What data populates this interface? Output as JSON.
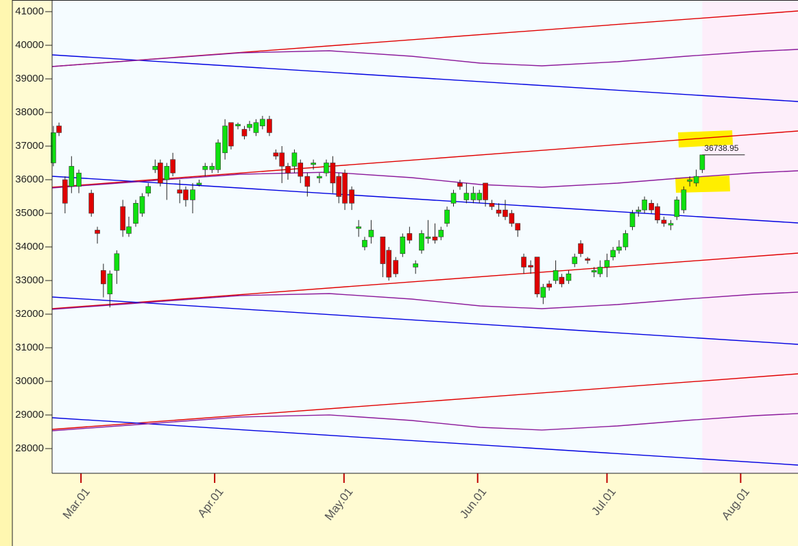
{
  "chart_data": {
    "type": "candlestick",
    "x": [
      53.6,
      54.9,
      56.3,
      57.8,
      59.5,
      62.4,
      63.8,
      65.2,
      66.7,
      68.3,
      69.7,
      71.1,
      72.7,
      74.2,
      75.6,
      77.2,
      78.4,
      79.9,
      81.3,
      82.9,
      84.3,
      85.9,
      87.4,
      88.8,
      90.4,
      91.8,
      93.4,
      94.8,
      96.4,
      97.9,
      99.1,
      100.6,
      102.1,
      103.7,
      105.2,
      106.6,
      108.0,
      109.5,
      110.9,
      112.5,
      113.9,
      115.3,
      116.9,
      118.4,
      119.8,
      121.2,
      122.8,
      124.4,
      125.8,
      127.3,
      130.0,
      131.4,
      133.0,
      134.6,
      136.2,
      137.6,
      139.0,
      140.5,
      142.1,
      143.5,
      144.9,
      146.4,
      147.9,
      149.4,
      151.0,
      152.4,
      153.8,
      155.3,
      156.9,
      158.4,
      159.9,
      161.3,
      162.7,
      164.3,
      165.8,
      167.2,
      168.6,
      170.1,
      171.5,
      173.1,
      174.5,
      175.9,
      177.5,
      179.0,
      180.4,
      182.0,
      183.4,
      184.8,
      186.3,
      187.9,
      189.3,
      190.7,
      192.3,
      193.7,
      195.2,
      196.8,
      198.2,
      199.8,
      201.2,
      202.7,
      204.1
    ],
    "open": [
      36500,
      37600,
      36000,
      35800,
      35800,
      35600,
      34500,
      33300,
      32600,
      33300,
      35200,
      34400,
      34700,
      35000,
      35600,
      36300,
      36500,
      36000,
      36600,
      35700,
      35700,
      35400,
      35850,
      36300,
      36300,
      36300,
      36800,
      37700,
      37600,
      37500,
      37550,
      37400,
      37600,
      37800,
      36800,
      36800,
      36400,
      36400,
      36500,
      36100,
      36450,
      36050,
      36200,
      36500,
      36100,
      36200,
      35700,
      34550,
      34000,
      34300,
      34300,
      33900,
      33600,
      33800,
      34400,
      33400,
      33900,
      34250,
      34300,
      34300,
      34700,
      35300,
      35900,
      35400,
      35400,
      35400,
      35900,
      35300,
      35100,
      35100,
      35000,
      34700,
      33700,
      33450,
      33700,
      32500,
      32900,
      33000,
      33100,
      33000,
      33500,
      34100,
      33650,
      33250,
      33200,
      33400,
      33700,
      33900,
      34000,
      34600,
      35050,
      35100,
      35300,
      35200,
      34800,
      34650,
      34900,
      35100,
      35950,
      35900,
      36300
    ],
    "high": [
      37600,
      37700,
      36100,
      36700,
      36300,
      35700,
      34600,
      33500,
      33300,
      33900,
      35400,
      34900,
      35400,
      35600,
      35900,
      36600,
      36600,
      36500,
      36800,
      36000,
      35800,
      35900,
      36000,
      36500,
      36500,
      37200,
      37800,
      37700,
      37700,
      37600,
      37750,
      37800,
      37900,
      37900,
      36900,
      37000,
      36500,
      36900,
      36600,
      36200,
      36600,
      36200,
      36600,
      36700,
      36200,
      36300,
      35800,
      34800,
      34300,
      34800,
      34300,
      34000,
      33700,
      34400,
      34600,
      33600,
      34500,
      34800,
      34700,
      34600,
      35200,
      35700,
      36000,
      35900,
      35800,
      35700,
      35900,
      35400,
      35300,
      35400,
      35100,
      34700,
      33800,
      33600,
      33700,
      32900,
      33000,
      33600,
      33200,
      33300,
      33800,
      34200,
      33700,
      33400,
      33600,
      33800,
      34000,
      34200,
      34500,
      35100,
      35200,
      35500,
      35400,
      35300,
      34900,
      34800,
      35500,
      35800,
      36100,
      36300,
      36739
    ],
    "low": [
      36400,
      37300,
      35000,
      35600,
      35600,
      34900,
      34100,
      32500,
      32200,
      32900,
      34300,
      34300,
      34600,
      34900,
      35500,
      36200,
      35800,
      35400,
      36100,
      35300,
      35200,
      35000,
      35800,
      36100,
      36200,
      36200,
      36600,
      36900,
      37500,
      37200,
      37450,
      37300,
      37500,
      37300,
      36600,
      35900,
      36000,
      36200,
      35900,
      35500,
      36300,
      35900,
      36100,
      35600,
      35300,
      35100,
      35100,
      34300,
      33900,
      34100,
      33100,
      33000,
      33100,
      33700,
      34100,
      33200,
      33800,
      34100,
      34100,
      34200,
      34600,
      35200,
      35700,
      35300,
      35300,
      35300,
      35200,
      35100,
      34900,
      34800,
      34600,
      34300,
      33200,
      33200,
      32500,
      32300,
      32700,
      32900,
      32800,
      32900,
      33400,
      33700,
      33500,
      33100,
      33100,
      33100,
      33600,
      33800,
      33900,
      34500,
      34900,
      35000,
      35000,
      34700,
      34600,
      34500,
      34800,
      35000,
      35800,
      35800,
      36200
    ],
    "close": [
      37400,
      37400,
      35300,
      36400,
      36200,
      35000,
      34400,
      32900,
      33200,
      33800,
      34500,
      34600,
      35300,
      35500,
      35800,
      36400,
      35900,
      36400,
      36200,
      35600,
      35400,
      35700,
      35900,
      36400,
      36400,
      37100,
      37600,
      37000,
      37650,
      37300,
      37650,
      37700,
      37800,
      37400,
      36700,
      36400,
      36200,
      36800,
      36100,
      35800,
      36500,
      36100,
      36500,
      35900,
      35500,
      35300,
      35300,
      34600,
      34200,
      34500,
      33500,
      33100,
      33200,
      34300,
      34200,
      33500,
      34400,
      34300,
      34200,
      34500,
      35100,
      35600,
      35800,
      35600,
      35600,
      35600,
      35400,
      35200,
      35000,
      34900,
      34700,
      34500,
      33400,
      33400,
      32600,
      32800,
      32800,
      33300,
      32900,
      33200,
      33700,
      33800,
      33600,
      33300,
      33400,
      33600,
      33900,
      34000,
      34400,
      35000,
      35100,
      35400,
      35100,
      34800,
      34700,
      34700,
      35400,
      35700,
      36000,
      36100,
      36738.95
    ],
    "up_color": "#10e010",
    "down_color": "#e00000",
    "xlim": [
      53.3,
      226.3
    ],
    "xticks": [
      {
        "value": 60,
        "label": "Mar.01"
      },
      {
        "value": 91,
        "label": "Apr.01"
      },
      {
        "value": 121,
        "label": "May.01"
      },
      {
        "value": 152,
        "label": "Jun.01"
      },
      {
        "value": 182,
        "label": "Jul.01"
      },
      {
        "value": 213,
        "label": "Aug.01"
      }
    ],
    "ylim": [
      27265,
      41347
    ],
    "yticks": [
      28000,
      29000,
      30000,
      31000,
      32000,
      33000,
      34000,
      35000,
      36000,
      37000,
      38000,
      39000,
      40000,
      41000
    ],
    "shaded_from": 204.1,
    "lines": [
      {
        "color": "#e00000",
        "x": [
          53.3,
          226.3
        ],
        "values": [
          39367,
          41020
        ]
      },
      {
        "color": "#e00000",
        "x": [
          53.3,
          226.3
        ],
        "values": [
          35776,
          37449
        ]
      },
      {
        "color": "#e00000",
        "x": [
          53.3,
          226.3
        ],
        "values": [
          32163,
          33816
        ]
      },
      {
        "color": "#e00000",
        "x": [
          53.3,
          226.3
        ],
        "values": [
          28571,
          30224
        ]
      },
      {
        "color": "#0000e0",
        "x": [
          53.3,
          226.3
        ],
        "values": [
          39714,
          38327
        ]
      },
      {
        "color": "#0000e0",
        "x": [
          53.3,
          226.3
        ],
        "values": [
          36102,
          34714
        ]
      },
      {
        "color": "#0000e0",
        "x": [
          53.3,
          226.3
        ],
        "values": [
          32510,
          31102
        ]
      },
      {
        "color": "#0000e0",
        "x": [
          53.3,
          226.3
        ],
        "values": [
          28918,
          27510
        ]
      },
      {
        "color": "#8b1a9b",
        "x": [
          53.3,
          73.0,
          96.9,
          117.6,
          136.7,
          152.6,
          166.9,
          184.4,
          200.3,
          216.2,
          226.3
        ],
        "values": [
          39367,
          39551,
          39776,
          39837,
          39673,
          39469,
          39388,
          39510,
          39673,
          39816,
          39878
        ]
      },
      {
        "color": "#8b1a9b",
        "x": [
          53.3,
          73.0,
          96.9,
          117.6,
          136.7,
          152.6,
          166.9,
          184.4,
          200.3,
          216.2,
          226.3
        ],
        "values": [
          35755,
          35939,
          36164,
          36225,
          36061,
          35857,
          35776,
          35898,
          36061,
          36204,
          36266
        ]
      },
      {
        "color": "#8b1a9b",
        "x": [
          53.3,
          73.0,
          96.9,
          117.6,
          136.7,
          152.6,
          166.9,
          184.4,
          200.3,
          216.2,
          226.3
        ],
        "values": [
          32143,
          32327,
          32552,
          32613,
          32449,
          32245,
          32164,
          32286,
          32449,
          32592,
          32654
        ]
      },
      {
        "color": "#8b1a9b",
        "x": [
          53.3,
          73.0,
          96.9,
          117.6,
          136.7,
          152.6,
          166.9,
          184.4,
          200.3,
          216.2,
          226.3
        ],
        "values": [
          28531,
          28715,
          28940,
          29001,
          28837,
          28633,
          28552,
          28674,
          28837,
          28980,
          29042
        ]
      }
    ]
  }
}
